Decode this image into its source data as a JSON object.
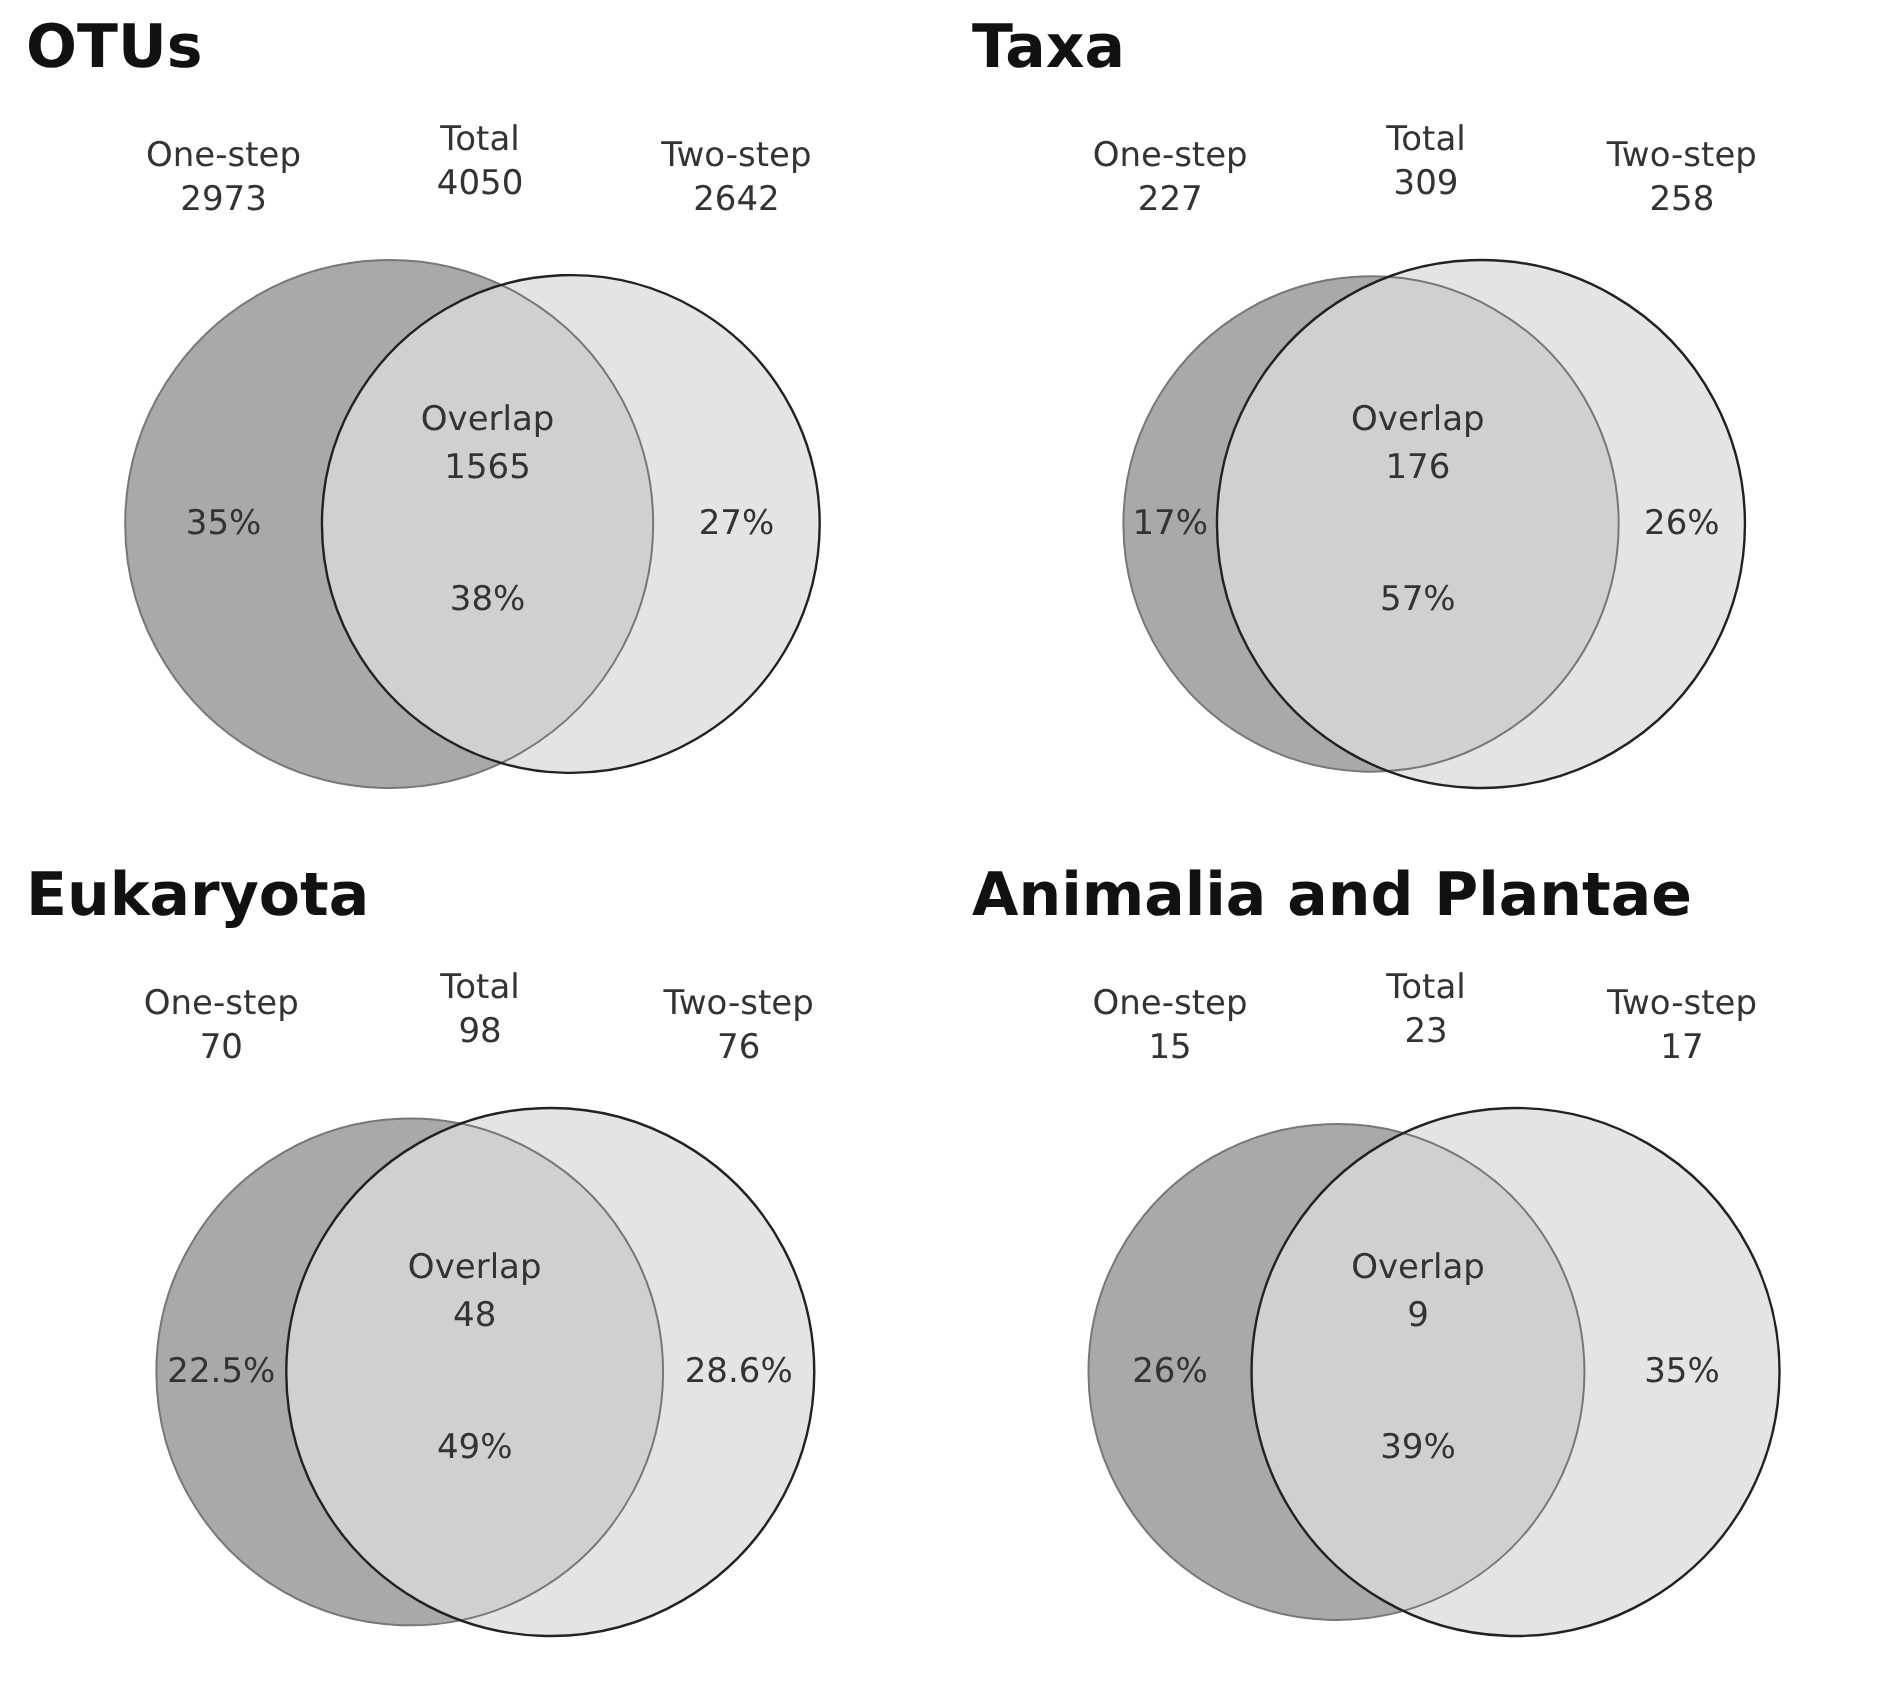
{
  "chart_data": [
    {
      "type": "other",
      "title": "OTUs",
      "categories": [
        "One-step",
        "Two-step",
        "Overlap",
        "Total"
      ],
      "data_labels": true,
      "series": [
        {
          "values": [
            2973,
            2642,
            1565,
            4050
          ]
        },
        {
          "values": [
            35,
            27,
            38,
            null
          ],
          "value_labels": [
            "35%",
            "27%",
            "38%",
            null
          ],
          "colors": [
            "#a9a9a9",
            "#e4e4e4",
            "#d0d0d0",
            null
          ]
        }
      ]
    },
    {
      "type": "other",
      "title": "Taxa",
      "categories": [
        "One-step",
        "Two-step",
        "Overlap",
        "Total"
      ],
      "data_labels": true,
      "series": [
        {
          "values": [
            227,
            258,
            176,
            309
          ]
        },
        {
          "values": [
            17,
            26,
            57,
            null
          ],
          "value_labels": [
            "17%",
            "26%",
            "57%",
            null
          ],
          "colors": [
            "#a9a9a9",
            "#e4e4e4",
            "#d0d0d0",
            null
          ]
        }
      ]
    },
    {
      "type": "other",
      "title": "Eukaryota",
      "categories": [
        "One-step",
        "Two-step",
        "Overlap",
        "Total"
      ],
      "data_labels": true,
      "series": [
        {
          "values": [
            70,
            76,
            48,
            98
          ]
        },
        {
          "values": [
            22.5,
            28.6,
            49,
            null
          ],
          "value_labels": [
            "22.5%",
            "28.6%",
            "49%",
            null
          ],
          "colors": [
            "#a9a9a9",
            "#e4e4e4",
            "#d0d0d0",
            null
          ]
        }
      ]
    },
    {
      "type": "other",
      "title": "Animalia and Plantae",
      "categories": [
        "One-step",
        "Two-step",
        "Overlap",
        "Total"
      ],
      "data_labels": true,
      "series": [
        {
          "values": [
            15,
            17,
            9,
            23
          ]
        },
        {
          "values": [
            26,
            35,
            39,
            null
          ],
          "value_labels": [
            "26%",
            "35%",
            "39%",
            null
          ],
          "colors": [
            "#a9a9a9",
            "#e4e4e4",
            "#d0d0d0",
            null
          ]
        }
      ]
    }
  ]
}
